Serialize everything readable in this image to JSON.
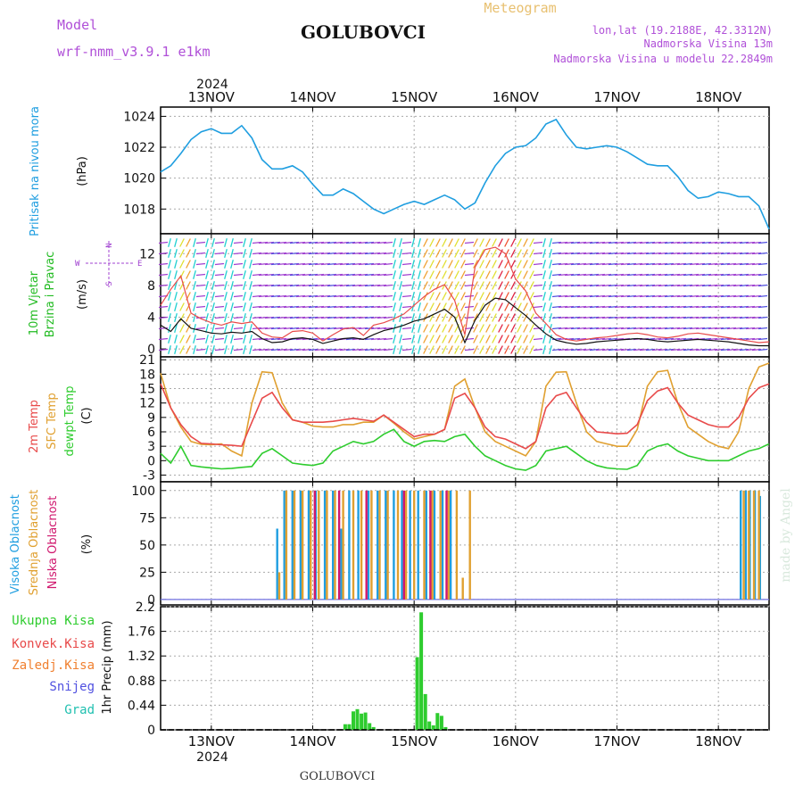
{
  "header": {
    "model_label": "Model",
    "model_name": "wrf-nmm_v3.9.1 e1km",
    "station": "GOLUBOVCI",
    "product": "Meteogram",
    "lonlat": "lon,lat (19.2188E, 42.3312N)",
    "altitude": "Nadmorska Visina 13m",
    "model_altitude": "Nadmorska Visina u modelu 22.2849m"
  },
  "footer": {
    "station": "GOLUBOVCI",
    "credit": "made by Angel"
  },
  "time_axis": {
    "year": "2024",
    "days": [
      "13NOV",
      "14NOV",
      "15NOV",
      "16NOV",
      "17NOV",
      "18NOV"
    ]
  },
  "colors": {
    "pressure": "#1f9ee0",
    "temp2m": "#e84a4a",
    "sfc": "#e0a030",
    "dewpt": "#2ecc2e",
    "high_cloud": "#1f9ee0",
    "mid_cloud": "#e0a030",
    "low_cloud": "#d0186e",
    "precip_total": "#2ecc2e",
    "convective": "#e84a4a",
    "freezing": "#f08030",
    "snow": "#5050e0",
    "hail": "#20c0b0",
    "wind_label": "#22bb22",
    "wind_dir": "#a040d0"
  },
  "chart_data": [
    {
      "type": "line",
      "name": "pressure",
      "ylabel": [
        "Pritisak na nivou mora",
        "(hPa)"
      ],
      "yticks": [
        1018,
        1020,
        1022,
        1024
      ],
      "ylim": [
        1016.4,
        1024.6
      ],
      "grid": true,
      "x_days": [
        12.5,
        12.6,
        12.7,
        12.8,
        12.9,
        13.0,
        13.1,
        13.2,
        13.3,
        13.4,
        13.5,
        13.6,
        13.7,
        13.8,
        13.9,
        14.0,
        14.1,
        14.2,
        14.3,
        14.4,
        14.5,
        14.6,
        14.7,
        14.8,
        14.9,
        15.0,
        15.1,
        15.2,
        15.3,
        15.4,
        15.5,
        15.6,
        15.7,
        15.8,
        15.9,
        16.0,
        16.1,
        16.2,
        16.3,
        16.4,
        16.5,
        16.6,
        16.7,
        16.8,
        16.9,
        17.0,
        17.1,
        17.2,
        17.3,
        17.4,
        17.5,
        17.6,
        17.7,
        17.8,
        17.9,
        18.0,
        18.1,
        18.2,
        18.3,
        18.4,
        18.5
      ],
      "values": [
        1020.4,
        1020.8,
        1021.6,
        1022.5,
        1023.0,
        1023.2,
        1022.9,
        1022.9,
        1023.4,
        1022.6,
        1021.2,
        1020.6,
        1020.6,
        1020.8,
        1020.4,
        1019.6,
        1018.9,
        1018.9,
        1019.3,
        1019.0,
        1018.5,
        1018.0,
        1017.7,
        1018.0,
        1018.3,
        1018.5,
        1018.3,
        1018.6,
        1018.9,
        1018.6,
        1018.0,
        1018.4,
        1019.7,
        1020.8,
        1021.6,
        1022.0,
        1022.1,
        1022.6,
        1023.5,
        1023.8,
        1022.8,
        1022.0,
        1021.9,
        1022.0,
        1022.1,
        1022.0,
        1021.7,
        1021.3,
        1020.9,
        1020.8,
        1020.8,
        1020.1,
        1019.2,
        1018.7,
        1018.8,
        1019.1,
        1019.0,
        1018.8,
        1018.8,
        1018.2,
        1016.7
      ]
    },
    {
      "type": "line",
      "name": "wind",
      "ylabel": [
        "10m Vjetar",
        "Brzina i Pravac",
        "(m/s)"
      ],
      "direction_legend": [
        "N",
        "E",
        "S",
        "W"
      ],
      "yticks": [
        0,
        4,
        8,
        12
      ],
      "ylim": [
        -1,
        14.5
      ],
      "grid": true,
      "x_days": [
        12.5,
        12.6,
        12.7,
        12.8,
        12.9,
        13.0,
        13.1,
        13.2,
        13.3,
        13.4,
        13.5,
        13.6,
        13.7,
        13.8,
        13.9,
        14.0,
        14.1,
        14.2,
        14.3,
        14.4,
        14.5,
        14.6,
        14.7,
        14.8,
        14.9,
        15.0,
        15.1,
        15.2,
        15.3,
        15.4,
        15.5,
        15.6,
        15.7,
        15.8,
        15.9,
        16.0,
        16.1,
        16.2,
        16.3,
        16.4,
        16.5,
        16.6,
        16.7,
        16.8,
        16.9,
        17.0,
        17.1,
        17.2,
        17.3,
        17.4,
        17.5,
        17.6,
        17.7,
        17.8,
        17.9,
        18.0,
        18.1,
        18.2,
        18.3,
        18.4,
        18.5
      ],
      "series": [
        {
          "name": "mean",
          "values": [
            3.0,
            2.2,
            3.8,
            2.6,
            2.3,
            2.0,
            1.9,
            2.1,
            2.0,
            2.2,
            1.3,
            0.8,
            0.9,
            1.3,
            1.4,
            1.2,
            0.7,
            1.0,
            1.3,
            1.4,
            1.2,
            1.8,
            2.3,
            2.6,
            3.0,
            3.5,
            3.8,
            4.4,
            5.0,
            4.0,
            0.8,
            3.6,
            5.5,
            6.4,
            6.2,
            5.2,
            4.2,
            3.0,
            1.9,
            1.1,
            0.8,
            0.6,
            0.7,
            0.9,
            1.0,
            1.1,
            1.2,
            1.3,
            1.2,
            1.0,
            0.9,
            1.0,
            1.1,
            1.2,
            1.1,
            1.0,
            0.9,
            0.7,
            0.5,
            0.4,
            0.4
          ]
        },
        {
          "name": "gust",
          "values": [
            5.5,
            7.5,
            9.2,
            4.5,
            3.8,
            3.3,
            3.0,
            3.4,
            3.2,
            3.4,
            2.0,
            1.5,
            1.4,
            2.2,
            2.3,
            2.0,
            1.0,
            1.8,
            2.5,
            2.7,
            1.7,
            3.0,
            3.3,
            3.8,
            4.4,
            5.5,
            6.6,
            7.5,
            8.1,
            6.1,
            1.8,
            10.3,
            12.5,
            12.8,
            12.0,
            8.8,
            7.3,
            4.5,
            3.2,
            1.8,
            1.2,
            1.0,
            1.2,
            1.4,
            1.5,
            1.7,
            1.9,
            2.0,
            1.8,
            1.5,
            1.4,
            1.6,
            1.9,
            2.0,
            1.8,
            1.6,
            1.4,
            1.2,
            1.0,
            0.8,
            0.9
          ]
        }
      ]
    },
    {
      "type": "line",
      "name": "temperature",
      "ylabel": [
        "2m Temp",
        "SFC Temp",
        "dewpt Temp",
        "(C)"
      ],
      "yticks": [
        -3,
        0,
        3,
        6,
        9,
        12,
        15,
        18,
        21
      ],
      "ylim": [
        -4.4,
        21.6
      ],
      "grid": true,
      "x_days": [
        12.5,
        12.6,
        12.7,
        12.8,
        12.9,
        13.0,
        13.1,
        13.2,
        13.3,
        13.4,
        13.5,
        13.6,
        13.7,
        13.8,
        13.9,
        14.0,
        14.1,
        14.2,
        14.3,
        14.4,
        14.5,
        14.6,
        14.7,
        14.8,
        14.9,
        15.0,
        15.1,
        15.2,
        15.3,
        15.4,
        15.5,
        15.6,
        15.7,
        15.8,
        15.9,
        16.0,
        16.1,
        16.2,
        16.3,
        16.4,
        16.5,
        16.6,
        16.7,
        16.8,
        16.9,
        17.0,
        17.1,
        17.2,
        17.3,
        17.4,
        17.5,
        17.6,
        17.7,
        17.8,
        17.9,
        18.0,
        18.1,
        18.2,
        18.3,
        18.4,
        18.5
      ],
      "series": [
        {
          "name": "2m Temp",
          "values": [
            16,
            11,
            7.5,
            5,
            3.6,
            3.5,
            3.3,
            3.2,
            3,
            8,
            13,
            14.2,
            11,
            8.5,
            8,
            8,
            8,
            8.2,
            8.5,
            8.8,
            8.5,
            8.2,
            9.5,
            8,
            6.5,
            5,
            5.5,
            5.5,
            6.5,
            13,
            14,
            11,
            7,
            5,
            4.5,
            3.5,
            2.5,
            4,
            11,
            13.5,
            14.2,
            11,
            8,
            6,
            5.8,
            5.6,
            5.7,
            7.5,
            12.5,
            14.5,
            15.2,
            12,
            9.5,
            8.5,
            7.5,
            7,
            7,
            9,
            13,
            15.2,
            16
          ]
        },
        {
          "name": "SFC Temp",
          "values": [
            18.2,
            11,
            7,
            4,
            3.4,
            3.3,
            3.5,
            2,
            1,
            12,
            18.5,
            18.3,
            12,
            8.5,
            8,
            7.2,
            7,
            7,
            7.5,
            7.5,
            8,
            8,
            9.5,
            7.8,
            6,
            4.5,
            5,
            5.5,
            6.5,
            15.5,
            17,
            11,
            6,
            4,
            3,
            2,
            1,
            4,
            15.5,
            18.4,
            18.5,
            12,
            6,
            4,
            3.5,
            3,
            3,
            6.5,
            15.5,
            18.5,
            18.8,
            12,
            7,
            5.5,
            4,
            3,
            2.5,
            6,
            15,
            19.5,
            20.3
          ]
        },
        {
          "name": "dewpt Temp",
          "values": [
            1.5,
            -0.5,
            3,
            -1,
            -1.3,
            -1.5,
            -1.7,
            -1.6,
            -1.4,
            -1.2,
            1.5,
            2.5,
            1,
            -0.5,
            -0.8,
            -1,
            -0.5,
            2,
            3,
            4,
            3.5,
            4,
            5.5,
            6.5,
            4,
            3,
            4,
            4.2,
            4,
            5,
            5.5,
            3,
            1,
            0,
            -1,
            -1.7,
            -2,
            -1,
            2,
            2.5,
            3,
            1.5,
            0,
            -1,
            -1.5,
            -1.7,
            -1.8,
            -1,
            2,
            3,
            3.5,
            2,
            1,
            0.5,
            0,
            0,
            0,
            1,
            2,
            2.5,
            3.5
          ]
        }
      ]
    },
    {
      "type": "bar",
      "name": "cloudiness",
      "ylabel": [
        "Visoka Oblacnost",
        "Srednja Oblacnost",
        "Niska Oblacnost",
        "(%)"
      ],
      "yticks": [
        0,
        25,
        50,
        75,
        100
      ],
      "ylim": [
        -5,
        108
      ],
      "grid": true,
      "series": [
        {
          "name": "Visoka Oblacnost",
          "x_days": [
            13.65,
            13.72,
            13.8,
            13.88,
            13.96,
            14.03,
            14.12,
            14.2,
            14.28,
            14.36,
            14.45,
            14.55,
            14.64,
            14.72,
            14.8,
            14.88,
            14.96,
            15.04,
            15.12,
            15.2,
            15.28,
            15.36,
            18.22,
            18.27,
            18.31,
            18.36,
            18.41
          ],
          "values": [
            65,
            100,
            100,
            100,
            100,
            100,
            100,
            100,
            65,
            100,
            100,
            100,
            100,
            100,
            100,
            100,
            100,
            100,
            100,
            100,
            100,
            100,
            100,
            100,
            100,
            100,
            95
          ]
        },
        {
          "name": "Srednja Oblacnost",
          "x_days": [
            13.67,
            13.74,
            13.82,
            13.9,
            13.98,
            14.06,
            14.14,
            14.22,
            14.3,
            14.4,
            14.48,
            14.58,
            14.66,
            14.74,
            14.84,
            14.92,
            15.0,
            15.1,
            15.18,
            15.26,
            15.34,
            15.42,
            15.48,
            15.55,
            18.25,
            18.3,
            18.35,
            18.4
          ],
          "values": [
            25,
            100,
            100,
            100,
            100,
            100,
            100,
            100,
            100,
            100,
            100,
            100,
            100,
            100,
            100,
            100,
            100,
            100,
            100,
            100,
            100,
            100,
            20,
            100,
            100,
            100,
            100,
            100
          ]
        },
        {
          "name": "Niska Oblacnost",
          "x_days": [
            14.02,
            14.26,
            14.53,
            14.9,
            15.16,
            15.32
          ],
          "values": [
            100,
            100,
            100,
            100,
            100,
            100
          ]
        }
      ]
    },
    {
      "type": "bar",
      "name": "precipitation",
      "ylabel": [
        "1hr Precip (mm)"
      ],
      "legend": [
        "Ukupna Kisa",
        "Konvek.Kisa",
        "Zaledj.Kisa",
        "Snijeg",
        "Grad"
      ],
      "yticks": [
        0,
        0.44,
        0.88,
        1.32,
        1.76,
        2.2
      ],
      "ylim": [
        0,
        2.2
      ],
      "grid": true,
      "series": [
        {
          "name": "Ukupna Kisa",
          "x_days": [
            14.32,
            14.36,
            14.4,
            14.44,
            14.48,
            14.52,
            14.56,
            14.6,
            15.03,
            15.07,
            15.11,
            15.15,
            15.19,
            15.23,
            15.27,
            15.31
          ],
          "values": [
            0.1,
            0.1,
            0.33,
            0.37,
            0.29,
            0.31,
            0.12,
            0.05,
            1.3,
            2.1,
            0.64,
            0.15,
            0.08,
            0.3,
            0.25,
            0.05
          ]
        }
      ]
    }
  ]
}
